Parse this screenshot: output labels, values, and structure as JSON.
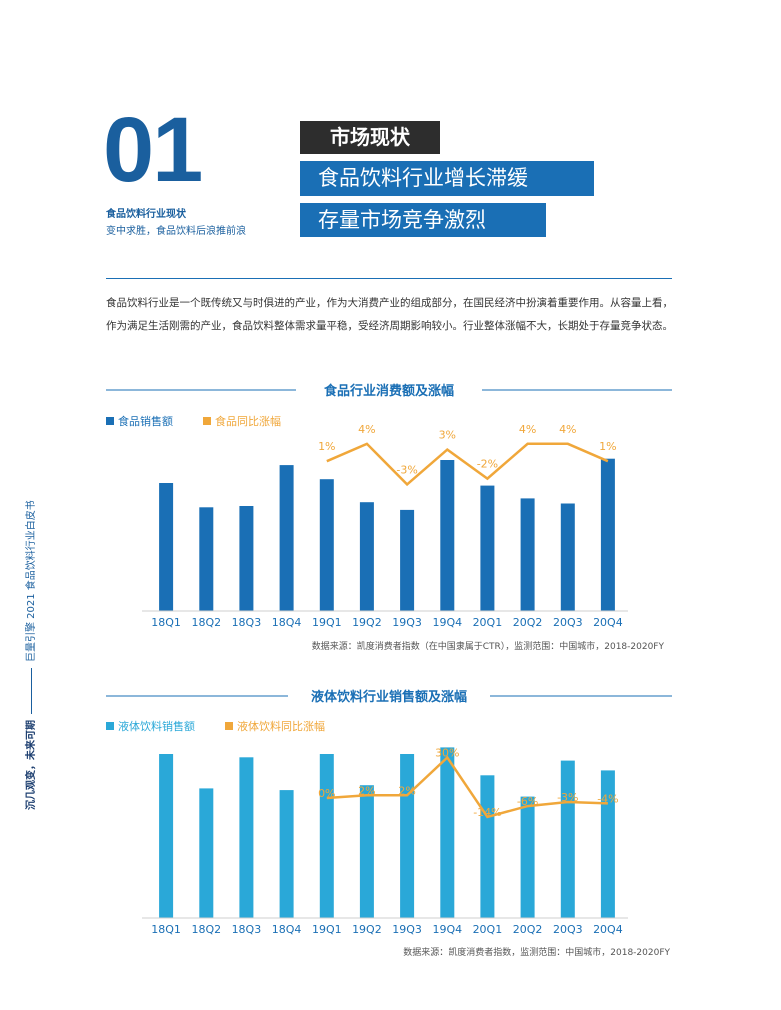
{
  "header": {
    "number": "01",
    "section_title": "食品饮料行业现状",
    "section_subtitle": "变中求胜，食品饮料后浪推前浪",
    "highlight_1": "市场现状",
    "highlight_2": "食品饮料行业增长滞缓",
    "highlight_3": "存量市场竞争激烈"
  },
  "intro": {
    "text": "食品饮料行业是一个既传统又与时俱进的产业，作为大消费产业的组成部分，在国民经济中扮演着重要作用。从容量上看，作为满足生活刚需的产业，食品饮料整体需求量平稳，受经济周期影响较小。行业整体涨幅不大，长期处于存量竞争状态。"
  },
  "sidebar": {
    "bold": "沉几观变，未来可期",
    "rest": "巨量引擎 2021 食品饮料行业白皮书"
  },
  "colors": {
    "food_bar": "#1a6fb5",
    "drink_bar": "#2aa8d8",
    "line": "#f0a73a",
    "title": "#1a6fb5"
  },
  "chart_data": [
    {
      "type": "bar",
      "title": "食品行业消费额及涨幅",
      "categories": [
        "18Q1",
        "18Q2",
        "18Q3",
        "18Q4",
        "19Q1",
        "19Q2",
        "19Q3",
        "19Q4",
        "20Q1",
        "20Q2",
        "20Q3",
        "20Q4"
      ],
      "series": [
        {
          "name": "食品销售额",
          "type": "bar",
          "values": [
            100,
            81,
            82,
            114,
            103,
            85,
            79,
            118,
            98,
            88,
            84,
            119
          ]
        },
        {
          "name": "食品同比涨幅",
          "type": "line",
          "values": [
            null,
            null,
            null,
            null,
            1,
            4,
            -3,
            3,
            -2,
            4,
            4,
            1
          ],
          "labels": [
            "",
            "",
            "",
            "",
            "1%",
            "4%",
            "-3%",
            "3%",
            "-2%",
            "4%",
            "4%",
            "1%"
          ]
        }
      ],
      "source": "数据来源：凯度消费者指数（在中国隶属于CTR），监测范围：中国城市，2018-2020FY"
    },
    {
      "type": "bar",
      "title": "液体饮料行业销售额及涨幅",
      "categories": [
        "18Q1",
        "18Q2",
        "18Q3",
        "18Q4",
        "19Q1",
        "19Q2",
        "19Q3",
        "19Q4",
        "20Q1",
        "20Q2",
        "20Q3",
        "20Q4"
      ],
      "series": [
        {
          "name": "液体饮料销售额",
          "type": "bar",
          "values": [
            100,
            79,
            98,
            78,
            100,
            81,
            100,
            104,
            87,
            74,
            96,
            90
          ]
        },
        {
          "name": "液体饮料同比涨幅",
          "type": "line",
          "values": [
            null,
            null,
            null,
            null,
            0,
            2,
            2,
            30,
            -14,
            -6,
            -3,
            -4
          ],
          "labels": [
            "",
            "",
            "",
            "",
            "0%",
            "2%",
            "2%",
            "30%",
            "-14%",
            "-6%",
            "-3%",
            "-4%"
          ]
        }
      ],
      "source": "数据来源：凯度消费者指数，监测范围：中国城市，2018-2020FY"
    }
  ]
}
